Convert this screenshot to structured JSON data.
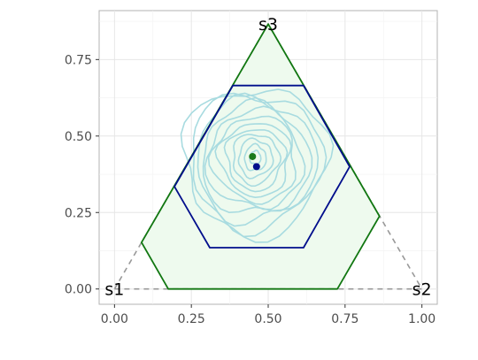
{
  "chart_data": {
    "type": "scatter",
    "title": "",
    "xlabel": "",
    "ylabel": "",
    "xlim": [
      -0.05,
      1.05
    ],
    "ylim": [
      -0.05,
      0.91
    ],
    "x_ticks": [
      0.0,
      0.25,
      0.5,
      0.75,
      1.0
    ],
    "x_tick_labels": [
      "0.00",
      "0.25",
      "0.50",
      "0.75",
      "1.00"
    ],
    "y_ticks": [
      0.0,
      0.25,
      0.5,
      0.75
    ],
    "y_tick_labels": [
      "0.00",
      "0.25",
      "0.50",
      "0.75"
    ],
    "grid": true,
    "legend": "none",
    "vertex_labels": [
      {
        "text": "s1",
        "x": 0.0,
        "y": 0.0
      },
      {
        "text": "s2",
        "x": 1.0,
        "y": 0.0
      },
      {
        "text": "s3",
        "x": 0.5,
        "y": 0.866
      }
    ],
    "simplex_outline": {
      "points": [
        [
          0,
          0
        ],
        [
          1,
          0
        ],
        [
          0.5,
          0.866
        ],
        [
          0,
          0
        ]
      ],
      "color": "#999999",
      "style": "dashed"
    },
    "outer_polygon": {
      "points": [
        [
          0.175,
          0.0
        ],
        [
          0.725,
          0.0
        ],
        [
          0.862,
          0.238
        ],
        [
          0.5,
          0.866
        ],
        [
          0.088,
          0.152
        ]
      ],
      "stroke": "#117711",
      "fill": "#eefaee"
    },
    "inner_hexagon": {
      "points": [
        [
          0.31,
          0.135
        ],
        [
          0.615,
          0.135
        ],
        [
          0.765,
          0.4
        ],
        [
          0.615,
          0.665
        ],
        [
          0.385,
          0.665
        ],
        [
          0.195,
          0.335
        ]
      ],
      "stroke": "#000e8c"
    },
    "density_contours": {
      "color": "#a8dbe0",
      "center": [
        0.458,
        0.43
      ],
      "levels": [
        {
          "rx": 0.235,
          "ry": 0.24
        },
        {
          "rx": 0.215,
          "ry": 0.22
        },
        {
          "rx": 0.195,
          "ry": 0.2
        },
        {
          "rx": 0.175,
          "ry": 0.18
        },
        {
          "rx": 0.155,
          "ry": 0.16
        },
        {
          "rx": 0.135,
          "ry": 0.14
        },
        {
          "rx": 0.115,
          "ry": 0.12
        },
        {
          "rx": 0.095,
          "ry": 0.1
        },
        {
          "rx": 0.075,
          "ry": 0.082
        },
        {
          "rx": 0.055,
          "ry": 0.062
        },
        {
          "rx": 0.035,
          "ry": 0.042
        },
        {
          "rx": 0.018,
          "ry": 0.022
        }
      ]
    },
    "points": [
      {
        "name": "green-point",
        "x": 0.449,
        "y": 0.433,
        "color": "#1a7a1a",
        "errorbar": 0.01
      },
      {
        "name": "blue-point",
        "x": 0.462,
        "y": 0.4,
        "color": "#000e8c"
      }
    ]
  }
}
